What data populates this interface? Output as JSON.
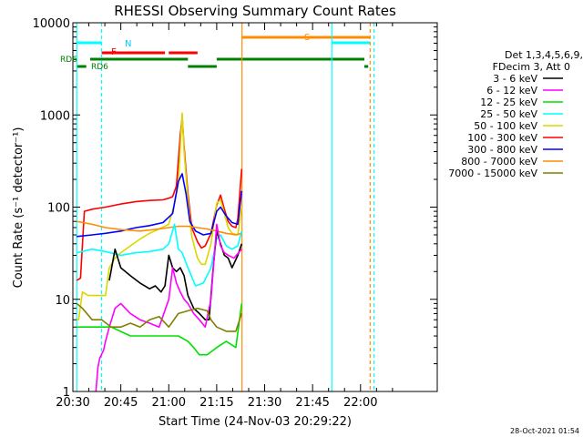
{
  "chart_data": {
    "type": "line",
    "title": "RHESSI Observing Summary Count Rates",
    "xlabel": "Start Time (24-Nov-03 20:29:22)",
    "ylabel": "Count Rate (s⁻¹ detector⁻¹)",
    "y_log": true,
    "xlim_minutes": [
      20.5,
      22.4
    ],
    "ylim": [
      1,
      10000
    ],
    "x_ticks": [
      "20:30",
      "20:45",
      "21:00",
      "21:15",
      "21:30",
      "21:45",
      "22:00"
    ],
    "y_ticks": [
      "1",
      "10",
      "100",
      "1000",
      "10000"
    ],
    "footer": "28-Oct-2021 01:54",
    "legend": {
      "header1": "Det 1,3,4,5,6,9,",
      "header2": "FDecim 3, Att 0",
      "entries": [
        {
          "label": "3 - 6 keV",
          "color": "#000000"
        },
        {
          "label": "6 - 12 keV",
          "color": "#ff00ff"
        },
        {
          "label": "12 - 25 keV",
          "color": "#00e000"
        },
        {
          "label": "25 - 50 keV",
          "color": "#00ffff"
        },
        {
          "label": "50 - 100 keV",
          "color": "#d8d800"
        },
        {
          "label": "100 - 300 keV",
          "color": "#ff0000"
        },
        {
          "label": "300 - 800 keV",
          "color": "#0000ff"
        },
        {
          "label": "800 - 7000 keV",
          "color": "#ff8c00"
        },
        {
          "label": "7000 - 15000 keV",
          "color": "#808000"
        }
      ]
    },
    "flag_labels": {
      "night": "N",
      "saa": "S",
      "fdecim": "F",
      "rd6_a": "RD6",
      "rd6_b": "RD6"
    },
    "series": [
      {
        "color": "#ff0000",
        "points": [
          [
            20.52,
            16
          ],
          [
            20.54,
            17
          ],
          [
            20.56,
            90
          ],
          [
            20.6,
            95
          ],
          [
            20.67,
            100
          ],
          [
            20.75,
            108
          ],
          [
            20.83,
            115
          ],
          [
            20.9,
            118
          ],
          [
            20.97,
            120
          ],
          [
            21.0,
            125
          ],
          [
            21.02,
            130
          ],
          [
            21.04,
            170
          ],
          [
            21.06,
            600
          ],
          [
            21.07,
            950
          ],
          [
            21.08,
            450
          ],
          [
            21.1,
            140
          ],
          [
            21.12,
            60
          ],
          [
            21.15,
            42
          ],
          [
            21.17,
            36
          ],
          [
            21.19,
            38
          ],
          [
            21.22,
            52
          ],
          [
            21.25,
            105
          ],
          [
            21.27,
            135
          ],
          [
            21.29,
            95
          ],
          [
            21.31,
            70
          ],
          [
            21.33,
            62
          ],
          [
            21.35,
            60
          ],
          [
            21.36,
            75
          ],
          [
            21.38,
            260
          ]
        ]
      },
      {
        "color": "#d8d800",
        "points": [
          [
            20.52,
            6
          ],
          [
            20.53,
            6
          ],
          [
            20.55,
            12
          ],
          [
            20.58,
            11
          ],
          [
            20.63,
            11
          ],
          [
            20.67,
            11
          ],
          [
            20.69,
            22
          ],
          [
            20.72,
            28
          ],
          [
            20.75,
            32
          ],
          [
            20.8,
            38
          ],
          [
            20.85,
            45
          ],
          [
            20.9,
            52
          ],
          [
            20.95,
            58
          ],
          [
            21.0,
            65
          ],
          [
            21.03,
            110
          ],
          [
            21.05,
            180
          ],
          [
            21.07,
            1050
          ],
          [
            21.08,
            400
          ],
          [
            21.1,
            120
          ],
          [
            21.12,
            48
          ],
          [
            21.15,
            28
          ],
          [
            21.17,
            24
          ],
          [
            21.19,
            24
          ],
          [
            21.22,
            40
          ],
          [
            21.25,
            110
          ],
          [
            21.27,
            120
          ],
          [
            21.29,
            85
          ],
          [
            21.31,
            60
          ],
          [
            21.33,
            52
          ],
          [
            21.36,
            50
          ],
          [
            21.38,
            100
          ]
        ]
      },
      {
        "color": "#0000ff",
        "points": [
          [
            20.52,
            48
          ],
          [
            20.6,
            50
          ],
          [
            20.67,
            52
          ],
          [
            20.75,
            55
          ],
          [
            20.83,
            60
          ],
          [
            20.9,
            63
          ],
          [
            20.97,
            68
          ],
          [
            21.02,
            85
          ],
          [
            21.05,
            190
          ],
          [
            21.07,
            230
          ],
          [
            21.09,
            140
          ],
          [
            21.11,
            70
          ],
          [
            21.14,
            55
          ],
          [
            21.18,
            50
          ],
          [
            21.22,
            52
          ],
          [
            21.25,
            90
          ],
          [
            21.27,
            100
          ],
          [
            21.3,
            80
          ],
          [
            21.33,
            68
          ],
          [
            21.36,
            65
          ],
          [
            21.38,
            150
          ]
        ]
      },
      {
        "color": "#ff8c00",
        "points": [
          [
            20.52,
            70
          ],
          [
            20.6,
            65
          ],
          [
            20.67,
            60
          ],
          [
            20.75,
            57
          ],
          [
            20.85,
            55
          ],
          [
            20.95,
            58
          ],
          [
            21.05,
            62
          ],
          [
            21.1,
            62
          ],
          [
            21.15,
            60
          ],
          [
            21.2,
            58
          ],
          [
            21.25,
            55
          ],
          [
            21.3,
            52
          ],
          [
            21.35,
            50
          ],
          [
            21.38,
            52
          ]
        ]
      },
      {
        "color": "#00ffff",
        "points": [
          [
            20.52,
            32
          ],
          [
            20.6,
            35
          ],
          [
            20.67,
            33
          ],
          [
            20.75,
            30
          ],
          [
            20.83,
            32
          ],
          [
            20.9,
            33
          ],
          [
            20.97,
            35
          ],
          [
            21.0,
            40
          ],
          [
            21.03,
            65
          ],
          [
            21.05,
            35
          ],
          [
            21.07,
            32
          ],
          [
            21.1,
            22
          ],
          [
            21.14,
            14
          ],
          [
            21.18,
            15
          ],
          [
            21.22,
            22
          ],
          [
            21.25,
            45
          ],
          [
            21.27,
            50
          ],
          [
            21.3,
            38
          ],
          [
            21.33,
            35
          ],
          [
            21.36,
            38
          ],
          [
            21.38,
            55
          ]
        ]
      },
      {
        "color": "#000000",
        "points": [
          [
            20.69,
            16
          ],
          [
            20.72,
            35
          ],
          [
            20.75,
            22
          ],
          [
            20.8,
            18
          ],
          [
            20.85,
            15
          ],
          [
            20.9,
            13
          ],
          [
            20.93,
            14
          ],
          [
            20.96,
            12
          ],
          [
            20.98,
            14
          ],
          [
            21.0,
            30
          ],
          [
            21.02,
            22
          ],
          [
            21.04,
            20
          ],
          [
            21.06,
            22
          ],
          [
            21.08,
            18
          ],
          [
            21.1,
            11
          ],
          [
            21.13,
            8
          ],
          [
            21.16,
            7
          ],
          [
            21.19,
            6
          ],
          [
            21.21,
            6
          ],
          [
            21.23,
            20
          ],
          [
            21.25,
            55
          ],
          [
            21.27,
            40
          ],
          [
            21.29,
            30
          ],
          [
            21.31,
            28
          ],
          [
            21.33,
            22
          ],
          [
            21.36,
            30
          ],
          [
            21.38,
            40
          ]
        ]
      },
      {
        "color": "#ff00ff",
        "points": [
          [
            20.69,
            5
          ],
          [
            20.72,
            8
          ],
          [
            20.75,
            9
          ],
          [
            20.8,
            7
          ],
          [
            20.85,
            6
          ],
          [
            20.9,
            5.5
          ],
          [
            20.95,
            5
          ],
          [
            21.0,
            10
          ],
          [
            21.02,
            22
          ],
          [
            21.04,
            15
          ],
          [
            21.06,
            12
          ],
          [
            21.08,
            10
          ],
          [
            21.1,
            9
          ],
          [
            21.13,
            7
          ],
          [
            21.16,
            6
          ],
          [
            21.19,
            5
          ],
          [
            21.22,
            10
          ],
          [
            21.25,
            65
          ],
          [
            21.27,
            38
          ],
          [
            21.29,
            32
          ],
          [
            21.31,
            30
          ],
          [
            21.34,
            28
          ],
          [
            21.38,
            35
          ]
        ]
      },
      {
        "color": "#ff00ff",
        "points": [
          [
            20.62,
            1
          ],
          [
            20.63,
            1.8
          ],
          [
            20.64,
            2.3
          ],
          [
            20.66,
            2.8
          ],
          [
            20.67,
            3.5
          ],
          [
            20.69,
            5
          ]
        ]
      },
      {
        "color": "#00e000",
        "points": [
          [
            20.52,
            5
          ],
          [
            20.56,
            5
          ],
          [
            20.6,
            5
          ],
          [
            20.65,
            5
          ],
          [
            20.7,
            5
          ],
          [
            20.8,
            4
          ],
          [
            20.9,
            4
          ],
          [
            21.0,
            4
          ],
          [
            21.05,
            4
          ],
          [
            21.1,
            3.5
          ],
          [
            21.13,
            3
          ],
          [
            21.16,
            2.5
          ],
          [
            21.2,
            2.5
          ],
          [
            21.25,
            3
          ],
          [
            21.3,
            3.5
          ],
          [
            21.35,
            3
          ],
          [
            21.38,
            9
          ]
        ]
      },
      {
        "color": "#808000",
        "points": [
          [
            20.52,
            9
          ],
          [
            20.55,
            8
          ],
          [
            20.6,
            6
          ],
          [
            20.65,
            6
          ],
          [
            20.7,
            5
          ],
          [
            20.75,
            5
          ],
          [
            20.8,
            5.5
          ],
          [
            20.85,
            5
          ],
          [
            20.9,
            6
          ],
          [
            20.95,
            6.5
          ],
          [
            21.0,
            5
          ],
          [
            21.05,
            7
          ],
          [
            21.1,
            7.5
          ],
          [
            21.15,
            8
          ],
          [
            21.2,
            7.5
          ],
          [
            21.22,
            6
          ],
          [
            21.25,
            5
          ],
          [
            21.3,
            4.5
          ],
          [
            21.35,
            4.5
          ],
          [
            21.38,
            7
          ]
        ]
      }
    ]
  }
}
